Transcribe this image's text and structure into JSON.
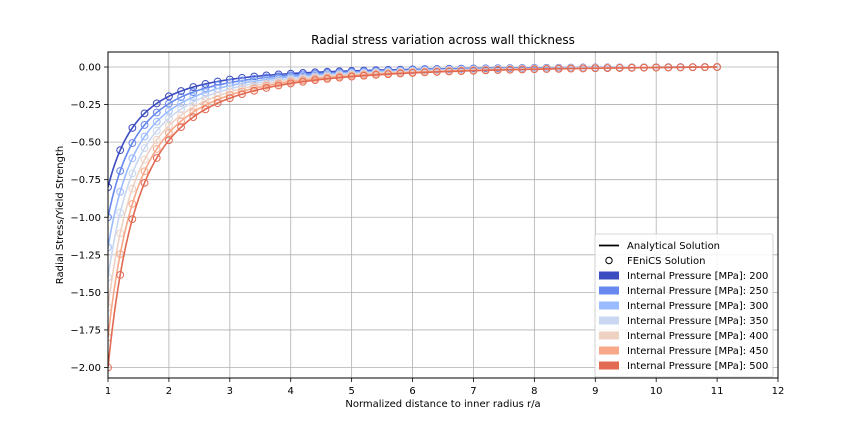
{
  "chart_data": {
    "type": "line",
    "title": "Radial stress variation across wall thickness",
    "xlabel": "Normalized distance to inner radius r/a",
    "ylabel": "Radial Stress/Yield Strength",
    "xlim": [
      1,
      12
    ],
    "ylim": [
      -2.07,
      0.1
    ],
    "grid": true,
    "x_ticks": [
      1,
      2,
      3,
      4,
      5,
      6,
      7,
      8,
      9,
      10,
      11,
      12
    ],
    "x_tick_labels": [
      "1",
      "2",
      "3",
      "4",
      "5",
      "6",
      "7",
      "8",
      "9",
      "10",
      "11",
      "12"
    ],
    "y_ticks": [
      0,
      -0.25,
      -0.5,
      -0.75,
      -1.0,
      -1.25,
      -1.5,
      -1.75,
      -2.0
    ],
    "y_tick_labels": [
      "0.00",
      "−0.25",
      "−0.50",
      "−0.75",
      "−1.00",
      "−1.25",
      "−1.50",
      "−1.75",
      "−2.00"
    ],
    "outer_radius_ratio": 11,
    "legend_position": "lower-right",
    "legend_entries": {
      "analytical": "Analytical Solution",
      "fenics": "FEniCS Solution"
    },
    "series": [
      {
        "name": "Internal Pressure [MPa]: 200",
        "color": "#3b4cc0",
        "inner_value": -0.8,
        "outer_value": 0.0
      },
      {
        "name": "Internal Pressure [MPa]: 250",
        "color": "#6788ee",
        "inner_value": -1.0,
        "outer_value": 0.0
      },
      {
        "name": "Internal Pressure [MPa]: 300",
        "color": "#9abbff",
        "inner_value": -1.2,
        "outer_value": 0.0
      },
      {
        "name": "Internal Pressure [MPa]: 350",
        "color": "#c9d7f0",
        "inner_value": -1.4,
        "outer_value": 0.0
      },
      {
        "name": "Internal Pressure [MPa]: 400",
        "color": "#edd1c2",
        "inner_value": -1.6,
        "outer_value": 0.0
      },
      {
        "name": "Internal Pressure [MPa]: 450",
        "color": "#f7a889",
        "inner_value": -1.8,
        "outer_value": 0.0
      },
      {
        "name": "Internal Pressure [MPa]: 500",
        "color": "#e26952",
        "inner_value": -2.0,
        "outer_value": 0.0
      }
    ]
  }
}
